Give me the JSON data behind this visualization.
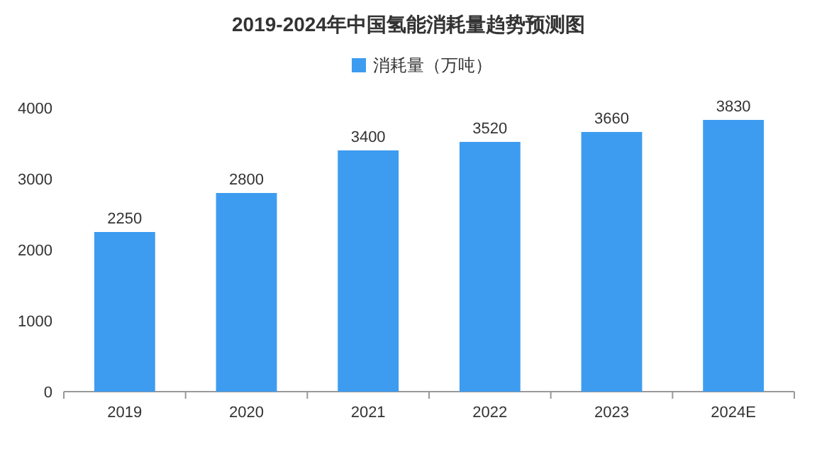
{
  "chart_data": {
    "type": "bar",
    "title": "2019-2024年中国氢能消耗量趋势预测图",
    "categories": [
      "2019",
      "2020",
      "2021",
      "2022",
      "2023",
      "2024E"
    ],
    "series": [
      {
        "name": "消耗量（万吨）",
        "color": "#3d9cf0",
        "values": [
          2250,
          2800,
          3400,
          3520,
          3660,
          3830
        ]
      }
    ],
    "ylim": [
      0,
      4000
    ],
    "yticks": [
      0,
      1000,
      2000,
      3000,
      4000
    ],
    "data_labels": true,
    "legend": "top",
    "grid": false
  }
}
